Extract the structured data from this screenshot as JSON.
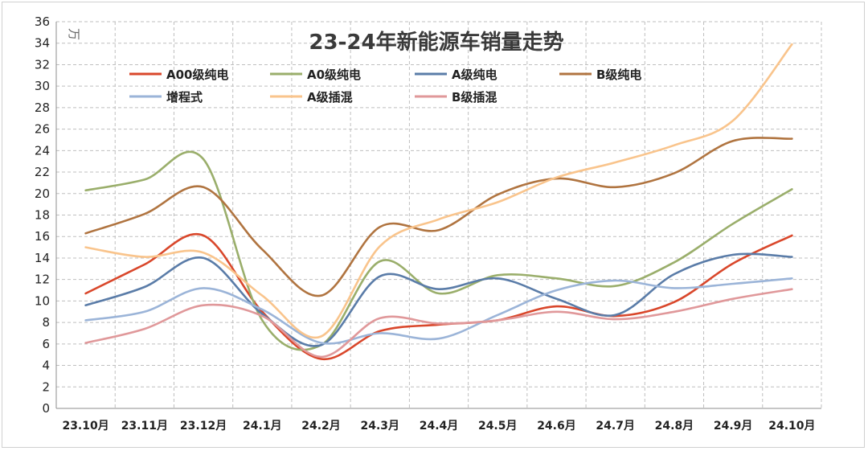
{
  "chart_data": {
    "type": "line",
    "title": "23-24年新能源车销量走势",
    "unit": "万",
    "xlabel": "",
    "ylabel": "",
    "ylim": [
      0,
      36
    ],
    "ytick_step": 2,
    "grid": true,
    "legend_position": "top",
    "categories": [
      "23.10月",
      "23.11月",
      "23.12月",
      "24.1月",
      "24.2月",
      "24.3月",
      "24.4月",
      "24.5月",
      "24.6月",
      "24.7月",
      "24.8月",
      "24.9月",
      "24.10月"
    ],
    "series": [
      {
        "name": "A00级纯电",
        "color": "#d9472b",
        "values": [
          10.7,
          13.4,
          16.1,
          9.0,
          4.6,
          7.2,
          7.8,
          8.2,
          9.5,
          8.6,
          9.9,
          13.5,
          16.1
        ]
      },
      {
        "name": "A0级纯电",
        "color": "#9aae6b",
        "values": [
          20.3,
          21.3,
          23.2,
          8.2,
          5.9,
          13.7,
          10.7,
          12.4,
          12.1,
          11.4,
          13.6,
          17.2,
          20.4
        ]
      },
      {
        "name": "A级纯电",
        "color": "#5a7ca8",
        "values": [
          9.6,
          11.3,
          14.0,
          8.8,
          5.9,
          12.3,
          11.1,
          12.1,
          10.2,
          8.7,
          12.5,
          14.3,
          14.1
        ]
      },
      {
        "name": "B级纯电",
        "color": "#b07440",
        "values": [
          16.3,
          18.1,
          20.6,
          14.8,
          10.5,
          16.9,
          16.6,
          19.9,
          21.4,
          20.6,
          21.9,
          24.9,
          25.1
        ]
      },
      {
        "name": "增程式",
        "color": "#9bb4d8",
        "values": [
          8.2,
          9.0,
          11.2,
          9.2,
          6.1,
          7.0,
          6.5,
          8.7,
          11.0,
          11.9,
          11.2,
          11.6,
          12.1
        ]
      },
      {
        "name": "A级插混",
        "color": "#f9c48c",
        "values": [
          15.0,
          14.1,
          14.5,
          10.5,
          6.7,
          15.1,
          17.6,
          19.2,
          21.5,
          22.9,
          24.5,
          26.8,
          33.9
        ]
      },
      {
        "name": "B级插混",
        "color": "#e0989a",
        "values": [
          6.1,
          7.4,
          9.6,
          8.6,
          4.8,
          8.4,
          7.9,
          8.2,
          9.0,
          8.3,
          9.0,
          10.2,
          11.1
        ]
      }
    ]
  }
}
